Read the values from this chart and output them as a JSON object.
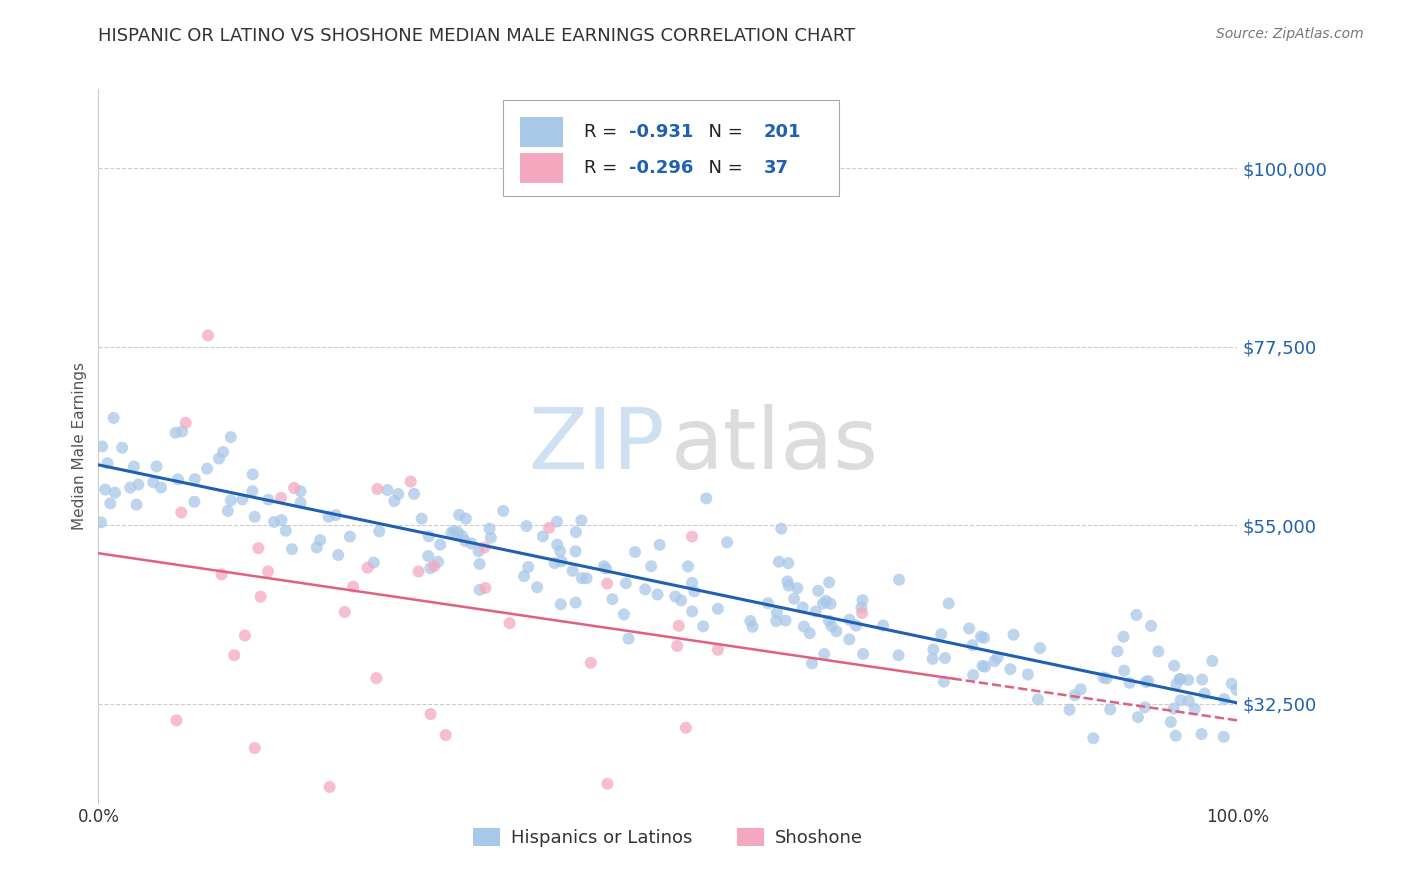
{
  "title": "HISPANIC OR LATINO VS SHOSHONE MEDIAN MALE EARNINGS CORRELATION CHART",
  "source": "Source: ZipAtlas.com",
  "ylabel": "Median Male Earnings",
  "xlim": [
    0.0,
    100.0
  ],
  "ylim": [
    20000,
    110000
  ],
  "yticks": [
    32500,
    55000,
    77500,
    100000
  ],
  "ytick_labels": [
    "$32,500",
    "$55,000",
    "$77,500",
    "$100,000"
  ],
  "xtick_labels": [
    "0.0%",
    "100.0%"
  ],
  "blue_R": -0.931,
  "blue_N": 201,
  "pink_R": -0.296,
  "pink_N": 37,
  "blue_scatter_color": "#a8c8e8",
  "pink_scatter_color": "#f4a8c0",
  "blue_line_color": "#2060b0",
  "pink_line_color": "#e06080",
  "grid_color": "#cccccc",
  "title_color": "#333333",
  "title_fontsize": 13,
  "legend_label_blue": "Hispanics or Latinos",
  "legend_label_pink": "Shoshone",
  "blue_intercept": 63000,
  "blue_slope": -305,
  "pink_intercept": 52000,
  "pink_slope": -230,
  "pink_solid_end": 75
}
